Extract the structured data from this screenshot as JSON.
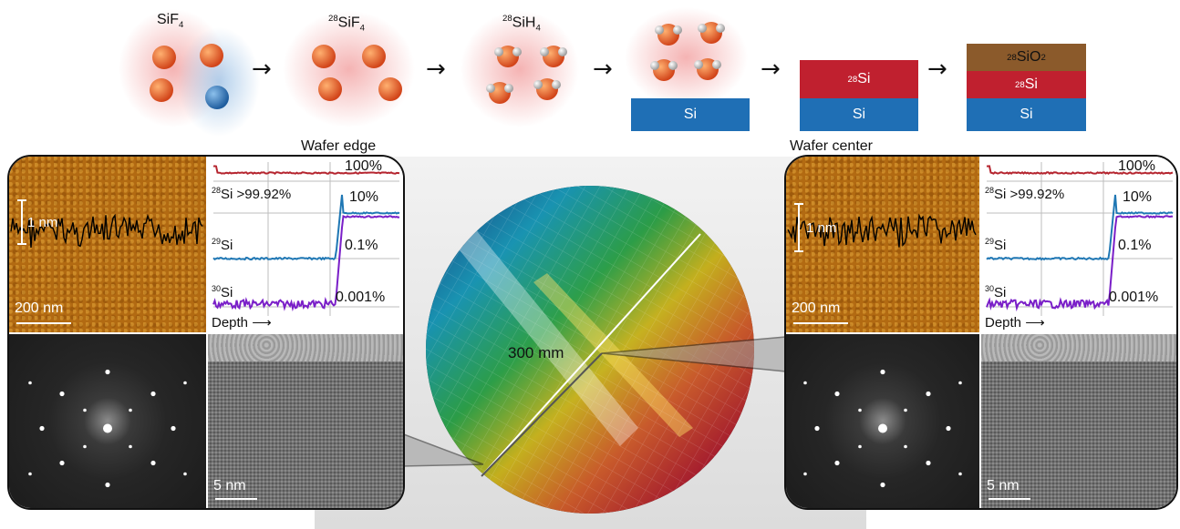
{
  "flow": {
    "molecule_labels": {
      "sif4": {
        "base": "SiF",
        "sub": "4"
      },
      "si28f4": {
        "sup": "28",
        "base": "SiF",
        "sub": "4"
      },
      "si28h4": {
        "sup": "28",
        "base": "SiH",
        "sub": "4"
      }
    },
    "stack_labels": {
      "substrate": "Si",
      "epi_layer": {
        "sup": "28",
        "base": "Si"
      },
      "oxide": {
        "sup": "28",
        "base": "SiO",
        "sub": "2"
      }
    },
    "colors": {
      "substrate": "#1f6fb5",
      "epi_layer": "#c0202f",
      "oxide": "#8b5a2b",
      "glow": "#f3b3b3",
      "glow_blue": "#b9d4ee"
    }
  },
  "panels": {
    "edge": {
      "title": "Wafer edge",
      "afm": {
        "height_bar_label": "1 nm",
        "scale_label": "200 nm"
      },
      "sims": {
        "si28_label": {
          "sup": "28",
          "base": "Si >99.92%"
        },
        "si29_label": {
          "sup": "29",
          "base": "Si"
        },
        "si30_label": {
          "sup": "30",
          "base": "Si"
        },
        "ticks": [
          "100%",
          "10%",
          "0.1%",
          "0.001%"
        ],
        "depth_label": "Depth"
      },
      "tem": {
        "scale_label": "5 nm"
      }
    },
    "center": {
      "title": "Wafer center",
      "afm": {
        "height_bar_label": "1 nm",
        "scale_label": "200 nm"
      },
      "sims": {
        "si28_label": {
          "sup": "28",
          "base": "Si >99.92%"
        },
        "si29_label": {
          "sup": "29",
          "base": "Si"
        },
        "si30_label": {
          "sup": "30",
          "base": "Si"
        },
        "ticks": [
          "100%",
          "10%",
          "0.1%",
          "0.001%"
        ],
        "depth_label": "Depth"
      },
      "tem": {
        "scale_label": "5 nm"
      }
    }
  },
  "wafer": {
    "diameter_label": "300 mm"
  },
  "series_colors": {
    "si28": "#b5252f",
    "si29": "#1f77b4",
    "si30": "#7a1fc8"
  }
}
